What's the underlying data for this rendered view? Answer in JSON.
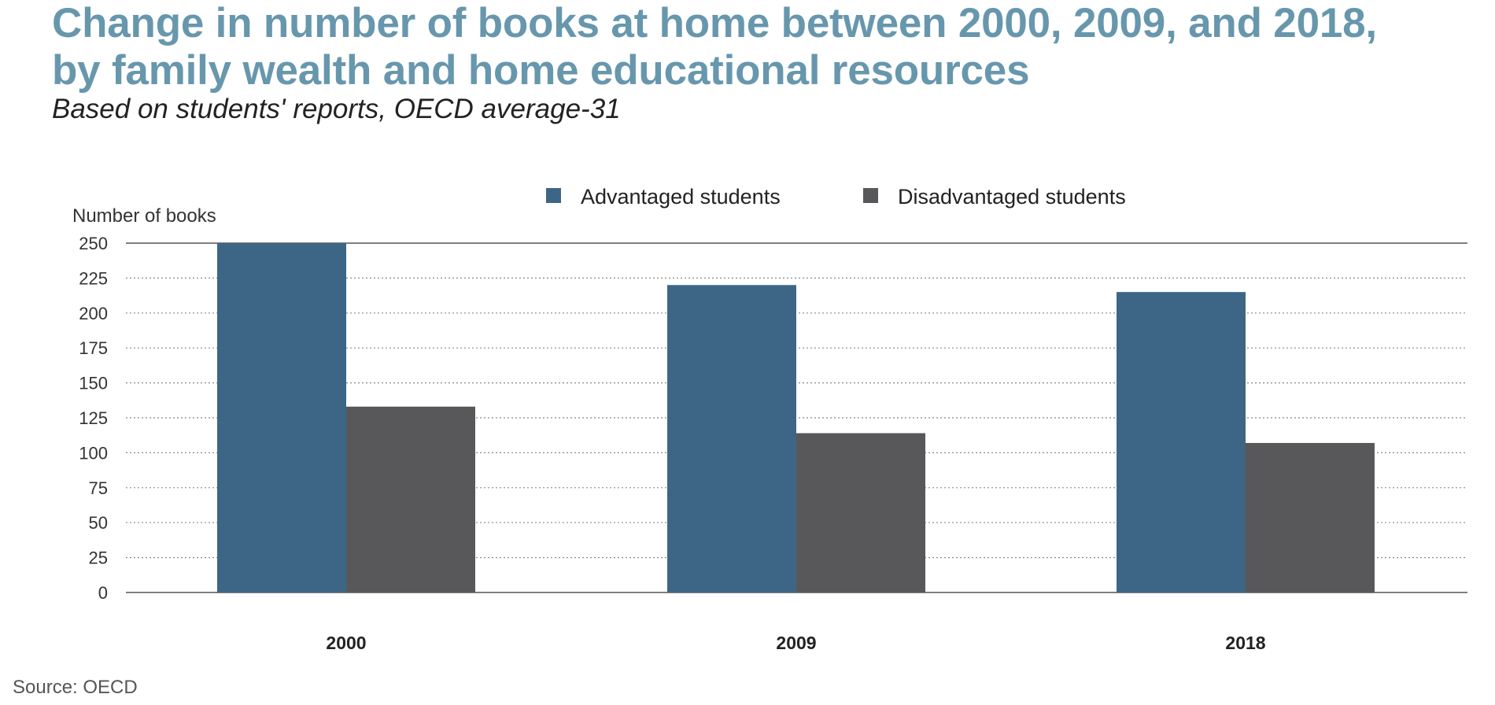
{
  "title_lines": [
    "Change in number of books at home between 2000, 2009, and 2018,",
    "by family wealth and home educational resources"
  ],
  "subtitle": "Based on students' reports, OECD average-31",
  "source": "Source: OECD",
  "colors": {
    "title": "#6797ad",
    "advantaged": "#3d6686",
    "disadvantaged": "#58585a"
  },
  "chart_data": {
    "type": "bar",
    "ylabel": "Number of books",
    "xlabel": "",
    "ylim": [
      0,
      250
    ],
    "yticks": [
      0,
      25,
      50,
      75,
      100,
      125,
      150,
      175,
      200,
      225,
      250
    ],
    "grid": true,
    "legend_position": "top",
    "categories": [
      "2000",
      "2009",
      "2018"
    ],
    "series": [
      {
        "name": "Advantaged students",
        "values": [
          250,
          220,
          215
        ]
      },
      {
        "name": "Disadvantaged students",
        "values": [
          133,
          114,
          107
        ]
      }
    ]
  }
}
